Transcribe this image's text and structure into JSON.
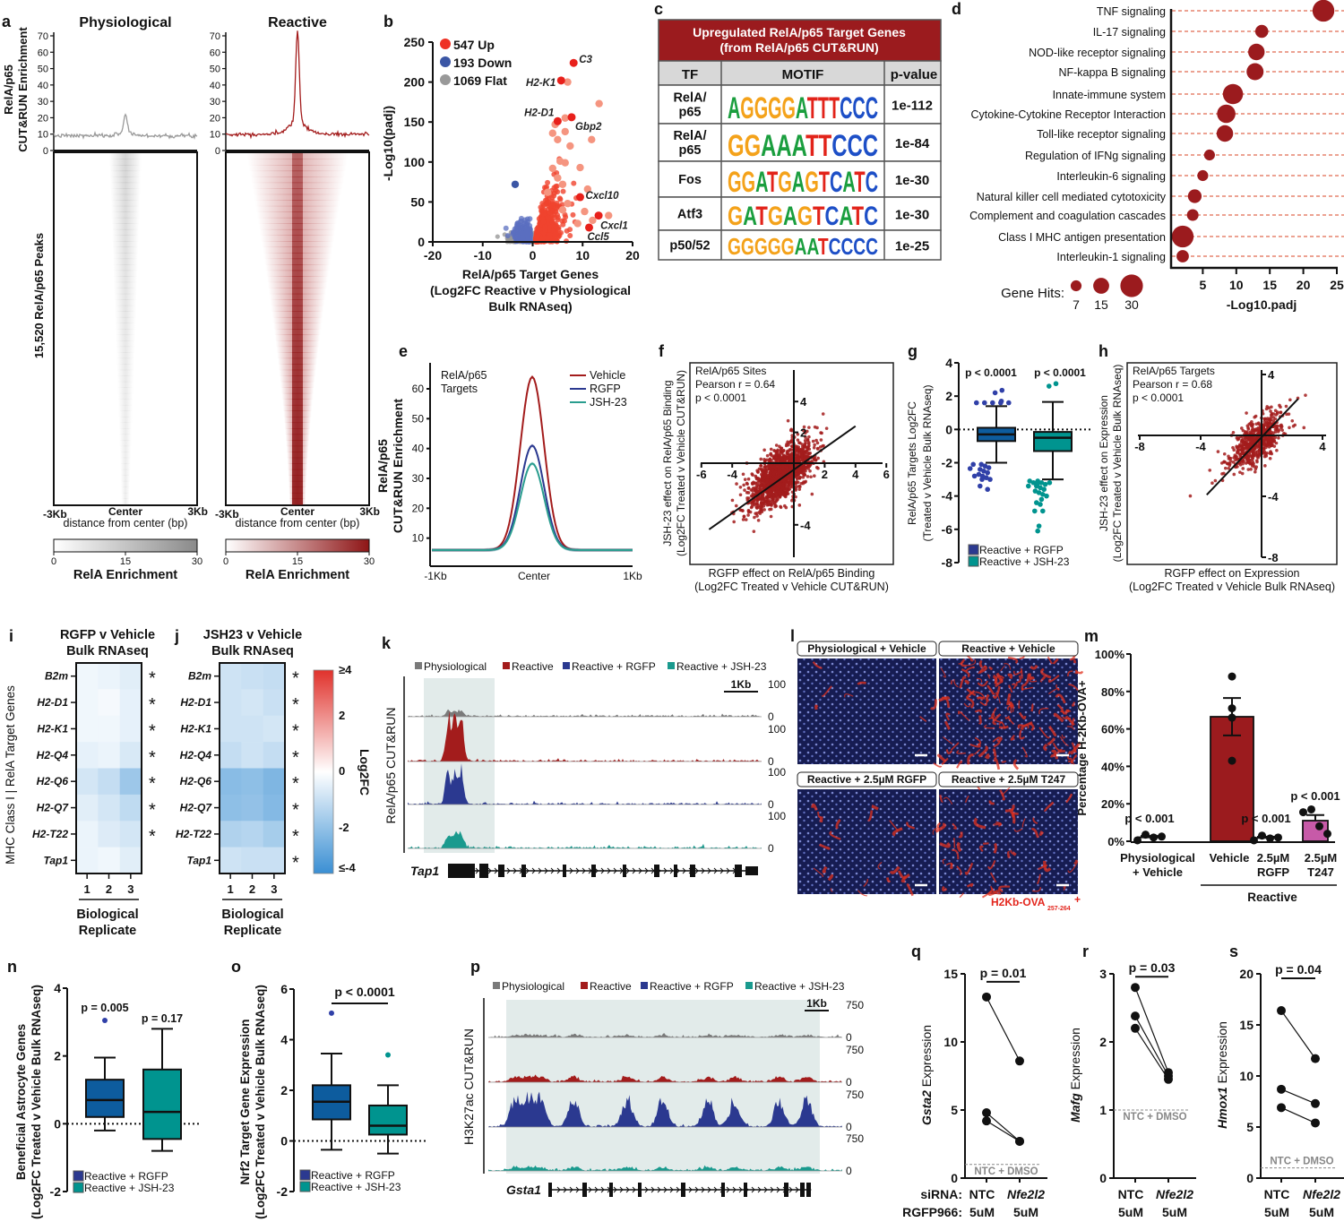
{
  "panel_letters": [
    "a",
    "b",
    "c",
    "d",
    "e",
    "f",
    "g",
    "h",
    "i",
    "j",
    "k",
    "l",
    "m",
    "n",
    "o",
    "p",
    "q",
    "r",
    "s"
  ],
  "colors": {
    "dark_red": "#9b1b1e",
    "up": "#ee3124",
    "up_light": "#f28a74",
    "down": "#3b56a5",
    "flat": "#999999",
    "rgfp": "#0d5c9e",
    "rgfp_legend": "#2b3990",
    "jsh": "#00948f",
    "t247": "#c75aa8",
    "heat_hi": "#e0312b",
    "heat_lo": "#3a8fd3"
  },
  "chart_data": [
    {
      "id": "a",
      "type": "heatmap",
      "ylabel": [
        "RelA/p65",
        "CUT&RUN Enrichment"
      ],
      "heatmap_ylabel": "15,520 RelA/p65 Peaks",
      "yticks": [
        0,
        10,
        20,
        30,
        40,
        50,
        60,
        70
      ],
      "ylim": [
        0,
        70
      ],
      "groups": [
        {
          "title": "Physiological",
          "peak": 20,
          "baseline": 9,
          "color": "#9a9a9a"
        },
        {
          "title": "Reactive",
          "peak": 65,
          "baseline": 10,
          "color": "#a31c1c"
        }
      ],
      "xticks": [
        "-3Kb",
        "Center",
        "3Kb"
      ],
      "xlabel": "distance from center (bp)",
      "colorbar": {
        "ticks": [
          "0",
          "15",
          "30"
        ],
        "label": "RelA Enrichment"
      }
    },
    {
      "id": "b",
      "type": "scatter",
      "ylabel": "-Log10(padj)",
      "xlabel": [
        "RelA/p65 Target Genes",
        "(Log2FC Reactive v Physiological",
        "Bulk RNAseq)"
      ],
      "xlim": [
        -20,
        20
      ],
      "ylim": [
        0,
        250
      ],
      "xticks": [
        -20,
        -10,
        0,
        10,
        20
      ],
      "yticks": [
        0,
        50,
        100,
        150,
        200,
        250
      ],
      "legend": [
        {
          "label": "547 Up",
          "color": "#ee3124"
        },
        {
          "label": "193 Down",
          "color": "#3b56a5"
        },
        {
          "label": "1069 Flat",
          "color": "#999999"
        }
      ],
      "labeled_points": [
        {
          "gene": "C3",
          "x": 8.2,
          "y": 224
        },
        {
          "gene": "H2-K1",
          "x": 5.7,
          "y": 202
        },
        {
          "gene": "H2-D1",
          "x": 5,
          "y": 151
        },
        {
          "gene": "Gbp2",
          "x": 7.8,
          "y": 156
        },
        {
          "gene": "Cxcl10",
          "x": 9.5,
          "y": 56
        },
        {
          "gene": "Cxcl1",
          "x": 13.2,
          "y": 33
        },
        {
          "gene": "Ccl5",
          "x": 11.3,
          "y": 18
        }
      ],
      "highlight_points": [
        [
          7,
          200
        ],
        [
          13.3,
          173
        ],
        [
          6.5,
          155
        ],
        [
          4.5,
          147
        ],
        [
          4,
          136
        ],
        [
          6.5,
          138
        ],
        [
          5,
          128
        ],
        [
          7.5,
          120
        ],
        [
          11.8,
          128
        ],
        [
          5.5,
          101
        ],
        [
          6.5,
          99
        ],
        [
          4,
          92
        ],
        [
          9.5,
          93
        ],
        [
          5,
          80
        ],
        [
          6,
          72
        ],
        [
          11,
          66
        ],
        [
          10.4,
          38
        ],
        [
          15.2,
          33
        ],
        [
          12,
          27
        ],
        [
          9,
          23
        ],
        [
          7,
          48
        ],
        [
          6,
          40
        ],
        [
          3,
          62
        ],
        [
          -3.5,
          72
        ]
      ]
    },
    {
      "id": "c",
      "type": "table",
      "title": [
        "Upregulated RelA/p65 Target Genes",
        "(from RelA/p65 CUT&RUN)"
      ],
      "columns": [
        "TF",
        "MOTIF",
        "p-value"
      ],
      "rows": [
        {
          "tf": [
            "RelA/",
            "p65"
          ],
          "motif": "AGGGGATTTCCC",
          "p": "1e-112"
        },
        {
          "tf": [
            "RelA/",
            "p65"
          ],
          "motif": "GGAAATTCCC",
          "p": "1e-84"
        },
        {
          "tf": [
            "Fos"
          ],
          "motif": "GGATGAGTCATC",
          "p": "1e-30"
        },
        {
          "tf": [
            "Atf3"
          ],
          "motif": "GATGAGTCATC",
          "p": "1e-30"
        },
        {
          "tf": [
            "p50/52"
          ],
          "motif": "GGGGGAATCCCC",
          "p": "1e-25"
        }
      ]
    },
    {
      "id": "d",
      "type": "scatter",
      "xlabel": "-Log10.padj",
      "xticks": [
        5,
        10,
        15,
        20,
        25
      ],
      "xlim": [
        0,
        25
      ],
      "size_legend_label": "Gene Hits:",
      "size_legend": [
        7,
        15,
        30
      ],
      "terms": [
        {
          "label": "TNF signaling",
          "x": 23,
          "hits": 28
        },
        {
          "label": "IL-17 signaling",
          "x": 13.8,
          "hits": 10
        },
        {
          "label": "NOD-like receptor signaling",
          "x": 13,
          "hits": 16
        },
        {
          "label": "NF-kappa B signaling",
          "x": 12.8,
          "hits": 17
        },
        {
          "label": "Innate-immune system",
          "x": 9.5,
          "hits": 24
        },
        {
          "label": "Cytokine-Cytokine Receptor Interaction",
          "x": 8.5,
          "hits": 20
        },
        {
          "label": "Toll-like receptor signaling",
          "x": 8.3,
          "hits": 16
        },
        {
          "label": "Regulation of IFNg signaling",
          "x": 6,
          "hits": 7
        },
        {
          "label": "Interleukin-6 signaling",
          "x": 5,
          "hits": 7
        },
        {
          "label": "Natural killer cell mediated cytotoxicity",
          "x": 3.8,
          "hits": 11
        },
        {
          "label": "Complement and coagulation cascades",
          "x": 3.5,
          "hits": 8
        },
        {
          "label": "Class I MHC antigen presentation",
          "x": 2,
          "hits": 28
        },
        {
          "label": "Interleukin-1 signaling",
          "x": 2,
          "hits": 9
        }
      ]
    },
    {
      "id": "e",
      "type": "line",
      "title": [
        "RelA/p65",
        "Targets"
      ],
      "ylabel": [
        "RelA/p65",
        "CUT&RUN Enrichment"
      ],
      "yticks": [
        10,
        20,
        30,
        40,
        50,
        60
      ],
      "xticks": [
        "-1Kb",
        "Center",
        "1Kb"
      ],
      "series": [
        {
          "name": "Vehicle",
          "peak": 64,
          "color": "#a31c1c"
        },
        {
          "name": "RGFP",
          "peak": 41,
          "color": "#2b3990"
        },
        {
          "name": "JSH-23",
          "peak": 35,
          "color": "#2a9d8f"
        }
      ],
      "baseline": 6
    },
    {
      "id": "f",
      "type": "scatter",
      "annot": [
        "RelA/p65 Sites",
        "Pearson r = 0.64",
        "p < 0.0001"
      ],
      "r": 0.64,
      "xticks": [
        -6,
        -4,
        2,
        4,
        6
      ],
      "yticks": [
        4,
        2,
        -4
      ],
      "xlabel": [
        "RGFP effect on RelA/p65 Binding",
        "(Log2FC Treated v Vehicle CUT&RUN)"
      ],
      "ylabel": [
        "JSH-23 effect on RelA/p65 Binding",
        "(Log2FC Treated v Vehicle CUT&RUN)"
      ]
    },
    {
      "id": "g",
      "type": "box",
      "ylabel": [
        "RelA/p65 Targets Log2FC",
        "(Treated v Vehicle Bulk RNAseq)"
      ],
      "yticks": [
        4,
        2,
        0,
        -2,
        -4,
        -6,
        -8
      ],
      "ylim": [
        -8,
        4
      ],
      "groups": [
        {
          "name": "Reactive + RGFP",
          "p": "p < 0.0001",
          "min": -2,
          "q1": -0.7,
          "median": -0.3,
          "q3": 0.1,
          "max": 1.4,
          "outliers": [
            1.6,
            1.6,
            1.6,
            1.7,
            1.6,
            1.6,
            2.2,
            2.35,
            -2.1,
            -2.2,
            -2.3,
            -2.4,
            -2.5,
            -2.6,
            -2.7,
            -2.8,
            -2.9,
            -3.0,
            -3.4,
            -3.6,
            -2.1,
            -2.35,
            -2.8,
            -3.0
          ]
        },
        {
          "name": "Reactive + JSH-23",
          "p": "p < 0.0001",
          "min": -3,
          "q1": -1.3,
          "median": -0.5,
          "q3": -0.15,
          "max": 1.65,
          "outliers": [
            2.6,
            2.75,
            -3.1,
            -3.1,
            -3.2,
            -3.2,
            -3.3,
            -3.3,
            -3.4,
            -3.5,
            -3.6,
            -3.7,
            -3.8,
            -4.0,
            -4.2,
            -4.4,
            -4.5,
            -4.9,
            -4.9,
            -5.8,
            -6.1,
            -3.2,
            -3.4,
            -3.9
          ]
        }
      ]
    },
    {
      "id": "h",
      "type": "scatter",
      "annot": [
        "RelA/p65 Targets",
        "Pearson r = 0.68",
        "p < 0.0001"
      ],
      "r": 0.68,
      "xticks": [
        -8,
        -4,
        4
      ],
      "yticks": [
        4,
        -4,
        -8
      ],
      "xlabel": [
        "RGFP effect on Expression",
        "(Log2FC Treated v Vehicle Bulk RNAseq)"
      ],
      "ylabel": [
        "JSH-23 effect on Expression",
        "(Log2FC Treated v Vehicle Bulk RNAseq)"
      ]
    },
    {
      "id": "i",
      "type": "heatmap",
      "title": [
        "RGFP v Vehicle",
        "Bulk RNAseq"
      ],
      "genes": [
        "B2m",
        "H2-D1",
        "H2-K1",
        "H2-Q4",
        "H2-Q6",
        "H2-Q7",
        "H2-T22",
        "Tap1"
      ],
      "values": [
        [
          -0.3,
          -0.4,
          -0.6
        ],
        [
          -0.3,
          -0.2,
          -0.5
        ],
        [
          -0.3,
          -0.3,
          -0.5
        ],
        [
          -0.5,
          -0.4,
          -0.8
        ],
        [
          -0.9,
          -1.2,
          -2.0
        ],
        [
          -0.6,
          -0.9,
          -1.3
        ],
        [
          -0.4,
          -0.7,
          -0.9
        ],
        [
          -0.4,
          -0.3,
          -0.6
        ]
      ],
      "sig": [
        "*",
        "*",
        "*",
        "*",
        "*",
        "*",
        "*"
      ],
      "xticks": [
        "1",
        "2",
        "3"
      ],
      "xlabel": [
        "Biological",
        "Replicate"
      ],
      "ylabel": "MHC Class I | RelA Target Genes"
    },
    {
      "id": "j",
      "type": "heatmap",
      "title": [
        "JSH23 v Vehicle",
        "Bulk RNAseq"
      ],
      "genes": [
        "B2m",
        "H2-D1",
        "H2-K1",
        "H2-Q4",
        "H2-Q6",
        "H2-Q7",
        "H2-T22",
        "Tap1"
      ],
      "values": [
        [
          -1.0,
          -1.1,
          -1.2
        ],
        [
          -1.0,
          -0.9,
          -1.1
        ],
        [
          -1.0,
          -1.0,
          -0.9
        ],
        [
          -1.2,
          -1.0,
          -1.2
        ],
        [
          -2.4,
          -2.3,
          -2.6
        ],
        [
          -2.3,
          -2.2,
          -2.5
        ],
        [
          -1.6,
          -1.5,
          -1.8
        ],
        [
          -1.0,
          -1.1,
          -1.1
        ]
      ],
      "sig": [
        "*",
        "*",
        "*",
        "*",
        "*",
        "*",
        "*",
        "*"
      ],
      "xticks": [
        "1",
        "2",
        "3"
      ],
      "xlabel": [
        "Biological",
        "Replicate"
      ],
      "colorbar": {
        "ticks": [
          "≥4",
          "2",
          "0",
          "-2",
          "≤-4"
        ],
        "label": "Log2FC",
        "range": [
          -4,
          4
        ]
      }
    },
    {
      "id": "k",
      "type": "tracks",
      "legend": [
        "Physiological",
        "Reactive",
        "Reactive + RGFP",
        "Reactive + JSH-23"
      ],
      "track_colors": [
        "#7a7a7a",
        "#a31c1c",
        "#2b3990",
        "#1a9a8e"
      ],
      "ylabel": "RelA/p65 CUT&RUN",
      "scale_label": "1Kb",
      "max_label": "100",
      "min_label": "0",
      "gene": "Tap1",
      "peak_heights": [
        6,
        55,
        42,
        18
      ]
    },
    {
      "id": "l",
      "type": "images",
      "labels": [
        "Physiological + Vehicle",
        "Reactive + Vehicle",
        "Reactive + 2.5µM RGFP",
        "Reactive + 2.5µM T247"
      ],
      "red_signal": [
        0.05,
        0.9,
        0.15,
        0.35
      ],
      "footnote": "H2Kb-OVA",
      "footnote_sub": "257-264",
      "footnote_sup": "+"
    },
    {
      "id": "m",
      "type": "bar",
      "ylabel": "Percentage H-2Kb-OVA+",
      "yticks": [
        "0%",
        "20%",
        "40%",
        "60%",
        "80%",
        "100%"
      ],
      "ylim": [
        0,
        100
      ],
      "bars": [
        {
          "label": [
            "Physiological",
            "+ Vehicle"
          ],
          "mean": 2.1,
          "sem": 0.7,
          "points": [
            0.5,
            3.5,
            2,
            2.5
          ],
          "p": "p < 0.001",
          "color": "#ffffff"
        },
        {
          "label": [
            "Vehicle"
          ],
          "mean": 66.5,
          "sem": 10,
          "points": [
            88,
            71,
            66,
            43
          ],
          "p": "",
          "color": "#9b1b1e"
        },
        {
          "label": [
            "2.5µM",
            "RGFP"
          ],
          "mean": 1.8,
          "sem": 0.6,
          "points": [
            0.5,
            3,
            1.5,
            2
          ],
          "p": "p < 0.001",
          "color": "#ffffff"
        },
        {
          "label": [
            "2.5µM",
            "T247"
          ],
          "mean": 11,
          "sem": 3,
          "points": [
            15.5,
            17,
            8,
            4
          ],
          "p": "p < 0.001",
          "color": "#c75aa8"
        }
      ],
      "group_label": "Reactive"
    },
    {
      "id": "n",
      "type": "box",
      "ylabel": [
        "Beneficial Astrocyte Genes",
        "(Log2FC Treated v Vehicle Bulk RNAseq)"
      ],
      "yticks": [
        4,
        2,
        0,
        -2
      ],
      "ylim": [
        -2,
        4
      ],
      "groups": [
        {
          "name": "Reactive + RGFP",
          "p": "p = 0.005",
          "min": -0.2,
          "q1": 0.2,
          "median": 0.7,
          "q3": 1.3,
          "max": 1.95,
          "outliers": [
            3.05
          ]
        },
        {
          "name": "Reactive + JSH-23",
          "p": "p = 0.17",
          "min": -0.8,
          "q1": -0.45,
          "median": 0.35,
          "q3": 1.6,
          "max": 2.8,
          "outliers": []
        }
      ]
    },
    {
      "id": "o",
      "type": "box",
      "ylabel": [
        "Nrf2 Target Gene Expression",
        "(Log2FC Treated v Vehicle Bulk RNAseq)"
      ],
      "yticks": [
        6,
        4,
        2,
        0,
        -2
      ],
      "ylim": [
        -2,
        6
      ],
      "p": "p < 0.0001",
      "groups": [
        {
          "name": "Reactive + RGFP",
          "min": -0.35,
          "q1": 0.85,
          "median": 1.55,
          "q3": 2.2,
          "max": 3.45,
          "outliers": [
            5.05
          ]
        },
        {
          "name": "Reactive + JSH-23",
          "min": -0.5,
          "q1": 0.25,
          "median": 0.6,
          "q3": 1.4,
          "max": 2.2,
          "outliers": [
            3.4
          ]
        }
      ]
    },
    {
      "id": "p",
      "type": "tracks",
      "legend": [
        "Physiological",
        "Reactive",
        "Reactive + RGFP",
        "Reactive + JSH-23"
      ],
      "track_colors": [
        "#7a7a7a",
        "#a31c1c",
        "#2b3990",
        "#1a9a8e"
      ],
      "ylabel": "H3K27ac CUT&RUN",
      "scale_label": "1Kb",
      "max_label": "750",
      "min_label": "0",
      "gene": "Gsta1",
      "peak_heights": [
        2,
        6,
        35,
        4
      ]
    },
    {
      "id": "q",
      "type": "paired",
      "ylabel_gene": "Gsta2",
      "ylabel_rest": " Expression",
      "yticks": [
        0,
        5,
        10,
        15
      ],
      "ylim": [
        0,
        15
      ],
      "p": "p = 0.01",
      "pairs": [
        [
          13.3,
          8.6
        ],
        [
          4.8,
          2.7
        ],
        [
          4.2,
          2.7
        ]
      ],
      "ref": 1,
      "ref_label": "NTC + DMSO",
      "row_labels": [
        "siRNA:",
        "RGFP966:"
      ],
      "x": [
        [
          "NTC",
          "5uM"
        ],
        [
          "Nfe2l2",
          "5uM"
        ]
      ]
    },
    {
      "id": "r",
      "type": "paired",
      "ylabel_gene": "Mafg",
      "ylabel_rest": " Expression",
      "yticks": [
        0,
        1,
        2,
        3
      ],
      "ylim": [
        0,
        3
      ],
      "p": "p = 0.03",
      "pairs": [
        [
          2.8,
          1.55
        ],
        [
          2.38,
          1.5
        ],
        [
          2.2,
          1.45
        ]
      ],
      "ref": 1,
      "ref_label": "NTC + DMSO",
      "x": [
        [
          "NTC",
          "5uM"
        ],
        [
          "Nfe2l2",
          "5uM"
        ]
      ]
    },
    {
      "id": "s",
      "type": "paired",
      "ylabel_gene": "Hmox1",
      "ylabel_rest": " Expression",
      "yticks": [
        0,
        5,
        10,
        15,
        20
      ],
      "ylim": [
        0,
        20
      ],
      "p": "p = 0.04",
      "pairs": [
        [
          16.4,
          11.7
        ],
        [
          8.7,
          7.3
        ],
        [
          6.9,
          5.4
        ]
      ],
      "ref": 1,
      "ref_label": "NTC + DMSO",
      "x": [
        [
          "NTC",
          "5uM"
        ],
        [
          "Nfe2l2",
          "5uM"
        ]
      ]
    }
  ]
}
